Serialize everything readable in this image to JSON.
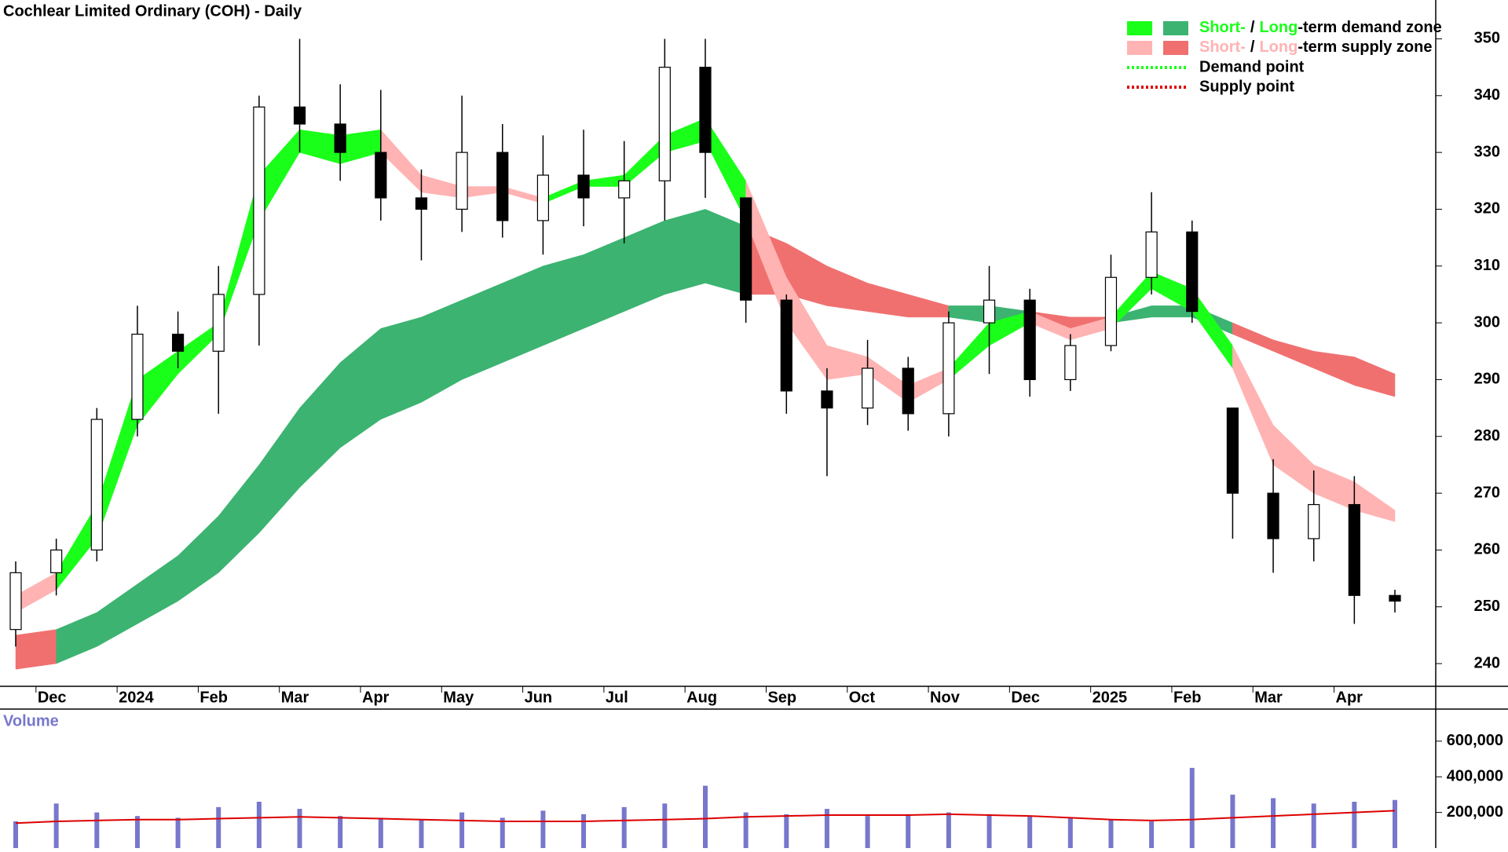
{
  "chart_data": {
    "type": "candlestick",
    "title": "Cochlear Limited Ordinary (COH) - Daily",
    "categories": [
      null,
      "Dec",
      null,
      "2024",
      null,
      "Feb",
      null,
      "Mar",
      null,
      "Apr",
      null,
      "May",
      null,
      "Jun",
      null,
      "Jul",
      null,
      "Aug",
      null,
      "Sep",
      null,
      "Oct",
      null,
      "Nov",
      null,
      "Dec",
      null,
      "2025",
      null,
      "Feb",
      null,
      "Mar",
      null,
      "Apr",
      null
    ],
    "open": [
      246,
      256,
      260,
      283,
      298,
      295,
      305,
      338,
      335,
      330,
      322,
      320,
      330,
      318,
      326,
      322,
      325,
      345,
      322,
      304,
      288,
      285,
      292,
      284,
      300,
      304,
      290,
      296,
      308,
      316,
      285,
      270,
      262,
      268,
      252
    ],
    "high": [
      258,
      262,
      285,
      303,
      302,
      310,
      340,
      350,
      342,
      341,
      327,
      340,
      335,
      333,
      334,
      332,
      350,
      350,
      322,
      305,
      292,
      297,
      294,
      302,
      310,
      306,
      298,
      312,
      323,
      318,
      285,
      276,
      274,
      273,
      253
    ],
    "low": [
      243,
      252,
      258,
      280,
      292,
      284,
      296,
      330,
      325,
      318,
      311,
      316,
      315,
      312,
      317,
      314,
      318,
      322,
      300,
      284,
      273,
      282,
      281,
      280,
      291,
      287,
      288,
      295,
      305,
      300,
      262,
      256,
      258,
      247,
      249
    ],
    "close": [
      256,
      260,
      283,
      298,
      295,
      305,
      338,
      335,
      330,
      322,
      320,
      330,
      318,
      326,
      322,
      325,
      345,
      330,
      304,
      288,
      285,
      292,
      284,
      300,
      304,
      290,
      296,
      308,
      316,
      302,
      270,
      262,
      268,
      252,
      251
    ],
    "up_color": "#ffffff",
    "down_color": "#000000",
    "short_zone": {
      "lower": [
        249,
        253,
        262,
        282,
        291,
        298,
        318,
        330,
        328,
        330,
        323,
        322,
        323,
        321,
        324,
        324,
        330,
        332,
        318,
        300,
        290,
        291,
        286,
        290,
        296,
        300,
        297,
        299,
        306,
        302,
        292,
        275,
        270,
        267,
        265
      ],
      "upper": [
        252,
        256,
        268,
        290,
        295,
        300,
        326,
        334,
        333,
        334,
        326,
        324,
        324,
        322,
        325,
        326,
        333,
        336,
        325,
        308,
        296,
        294,
        289,
        292,
        300,
        302,
        299,
        301,
        309,
        306,
        296,
        282,
        275,
        272,
        267
      ],
      "state": [
        "supply",
        "demand",
        "demand",
        "demand",
        "demand",
        "demand",
        "demand",
        "demand",
        "demand",
        "supply",
        "supply",
        "supply",
        "supply",
        "demand",
        "demand",
        "demand",
        "demand",
        "demand",
        "supply",
        "supply",
        "supply",
        "supply",
        "supply",
        "demand",
        "demand",
        "supply",
        "supply",
        "demand",
        "demand",
        "demand",
        "supply",
        "supply",
        "supply",
        "supply",
        "supply"
      ]
    },
    "long_zone": {
      "lower": [
        239,
        240,
        243,
        247,
        251,
        256,
        263,
        271,
        278,
        283,
        286,
        290,
        293,
        296,
        299,
        302,
        305,
        307,
        305,
        305,
        303,
        302,
        301,
        301,
        300,
        300,
        299,
        300,
        301,
        301,
        298,
        295,
        292,
        289,
        287
      ],
      "upper": [
        245,
        246,
        249,
        254,
        259,
        266,
        275,
        285,
        293,
        299,
        301,
        304,
        307,
        310,
        312,
        315,
        318,
        320,
        317,
        314,
        310,
        307,
        305,
        303,
        303,
        302,
        301,
        301,
        303,
        303,
        300,
        297,
        295,
        294,
        291
      ],
      "state": [
        "supply",
        "demand",
        "demand",
        "demand",
        "demand",
        "demand",
        "demand",
        "demand",
        "demand",
        "demand",
        "demand",
        "demand",
        "demand",
        "demand",
        "demand",
        "demand",
        "demand",
        "demand",
        "supply",
        "supply",
        "supply",
        "supply",
        "supply",
        "demand",
        "demand",
        "supply",
        "supply",
        "demand",
        "demand",
        "demand",
        "supply",
        "supply",
        "supply",
        "supply",
        "supply"
      ]
    },
    "zone_colors": {
      "short_demand": "#1aff1a",
      "long_demand": "#3cb371",
      "short_supply": "#ffb3b3",
      "long_supply": "#f07070"
    },
    "legend": [
      {
        "parts": [
          "Short-",
          "/",
          "Long",
          "-term demand zone"
        ],
        "colors": [
          "#1aff1a",
          "#3cb371"
        ],
        "text_color": "#1aff1a"
      },
      {
        "parts": [
          "Short-",
          "/",
          "Long",
          "-term supply zone"
        ],
        "colors": [
          "#ffb3b3",
          "#f07070"
        ],
        "text_color": "#ffb3b3"
      },
      {
        "parts": [
          "Demand point"
        ],
        "line_color": "#1aff1a"
      },
      {
        "parts": [
          "Supply point"
        ],
        "line_color": "#dd0000"
      }
    ],
    "ylim": [
      236,
      352
    ],
    "yticks": [
      240,
      250,
      260,
      270,
      280,
      290,
      300,
      310,
      320,
      330,
      340,
      350
    ],
    "volume": {
      "label": "Volume",
      "values": [
        150000,
        250000,
        200000,
        180000,
        170000,
        230000,
        260000,
        220000,
        180000,
        170000,
        160000,
        200000,
        170000,
        210000,
        190000,
        230000,
        250000,
        350000,
        200000,
        190000,
        220000,
        180000,
        190000,
        200000,
        190000,
        180000,
        170000,
        160000,
        150000,
        450000,
        300000,
        280000,
        250000,
        260000,
        270000
      ],
      "ma": [
        140000,
        150000,
        155000,
        160000,
        160000,
        165000,
        170000,
        175000,
        170000,
        165000,
        160000,
        155000,
        150000,
        150000,
        150000,
        155000,
        160000,
        165000,
        175000,
        180000,
        185000,
        185000,
        185000,
        190000,
        185000,
        180000,
        170000,
        160000,
        155000,
        160000,
        170000,
        180000,
        190000,
        200000,
        210000
      ],
      "color": "#7777cc",
      "ma_color": "#dd0000",
      "ylim": [
        0,
        780000
      ],
      "yticks": [
        {
          "value": 200000,
          "label": "200,000"
        },
        {
          "value": 400000,
          "label": "400,000"
        },
        {
          "value": 600000,
          "label": "600,000"
        }
      ]
    }
  }
}
